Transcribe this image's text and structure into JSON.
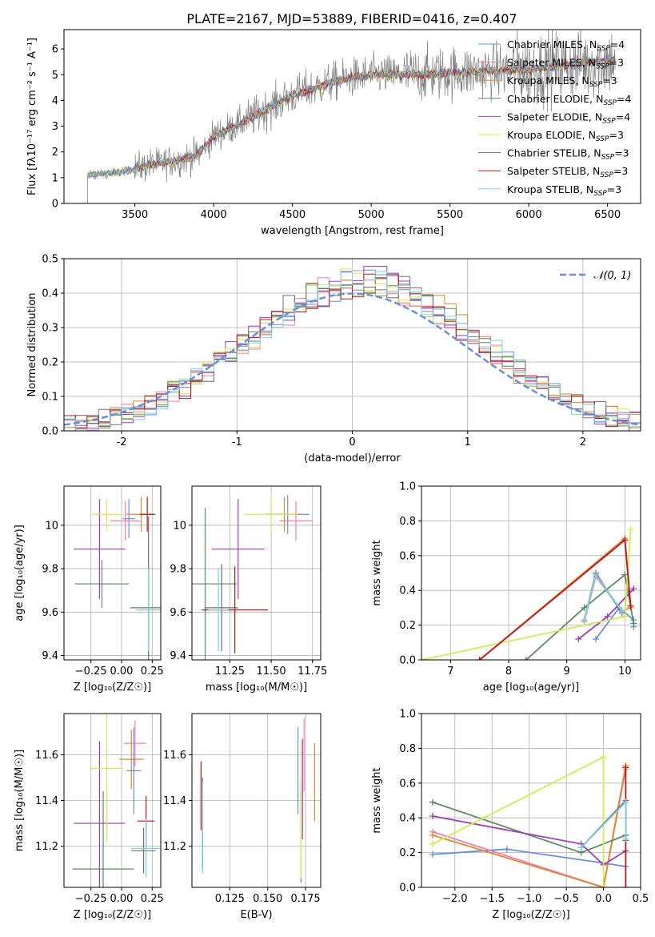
{
  "figure": {
    "title": "PLATE=2167, MJD=53889, FIBERID=0416, z=0.407"
  },
  "series_colors": {
    "Chabrier MILES": "#6a8fd8",
    "Salpeter MILES": "#ec7fb6",
    "Kroupa MILES": "#d98a30",
    "Chabrier ELODIE": "#5b8a63",
    "Salpeter ELODIE": "#9b3fb5",
    "Kroupa ELODIE": "#d4e857",
    "Chabrier STELIB": "#6e6e6e",
    "Salpeter STELIB": "#b5191c",
    "Kroupa STELIB": "#7ed0dd",
    "normal_curve": "#6a8fd8"
  },
  "chart_data": [
    {
      "id": "spectrum",
      "type": "line",
      "xlabel": "wavelength [Angstrom, rest frame]",
      "ylabel": "Flux [fλ10⁻¹⁷ erg cm⁻² s⁻¹ A⁻¹]",
      "xlim": [
        3050,
        6710
      ],
      "ylim": [
        0,
        6.75
      ],
      "xticks": [
        3500,
        4000,
        4500,
        5000,
        5500,
        6000,
        6500
      ],
      "yticks": [
        0,
        1,
        2,
        3,
        4,
        5,
        6
      ],
      "grid": false,
      "legend_position": "top-right",
      "legend": [
        {
          "label": "Chabrier MILES, N",
          "sub": "SSP",
          "suffix": "=4",
          "color_key": "Chabrier MILES"
        },
        {
          "label": "Salpeter MILES, N",
          "sub": "SSP",
          "suffix": "=3",
          "color_key": "Salpeter MILES"
        },
        {
          "label": "Kroupa MILES, N",
          "sub": "SSP",
          "suffix": "=3",
          "color_key": "Kroupa MILES"
        },
        {
          "label": "Chabrier ELODIE, N",
          "sub": "SSP",
          "suffix": "=4",
          "color_key": "Chabrier ELODIE"
        },
        {
          "label": "Salpeter ELODIE, N",
          "sub": "SSP",
          "suffix": "=4",
          "color_key": "Salpeter ELODIE"
        },
        {
          "label": "Kroupa ELODIE, N",
          "sub": "SSP",
          "suffix": "=3",
          "color_key": "Kroupa ELODIE"
        },
        {
          "label": "Chabrier STELIB, N",
          "sub": "SSP",
          "suffix": "=3",
          "color_key": "Chabrier STELIB"
        },
        {
          "label": "Salpeter STELIB, N",
          "sub": "SSP",
          "suffix": "=3",
          "color_key": "Salpeter STELIB"
        },
        {
          "label": "Kroupa STELIB, N",
          "sub": "SSP",
          "suffix": "=3",
          "color_key": "Kroupa STELIB"
        }
      ],
      "continuum_knots": [
        [
          3200,
          1.1
        ],
        [
          3400,
          1.2
        ],
        [
          3600,
          1.5
        ],
        [
          3800,
          1.7
        ],
        [
          3900,
          1.9
        ],
        [
          4000,
          2.6
        ],
        [
          4200,
          3.2
        ],
        [
          4500,
          4.2
        ],
        [
          4800,
          4.8
        ],
        [
          5000,
          5.0
        ],
        [
          5300,
          5.0
        ],
        [
          5600,
          5.1
        ],
        [
          6000,
          5.2
        ],
        [
          6300,
          5.4
        ],
        [
          6550,
          5.6
        ]
      ]
    },
    {
      "id": "residuals",
      "type": "histogram",
      "xlabel": "(data-model)/error",
      "ylabel": "Normed distribution",
      "xlim": [
        -2.5,
        2.5
      ],
      "ylim": [
        0,
        0.5
      ],
      "xticks": [
        -2,
        -1,
        0,
        1,
        2
      ],
      "yticks": [
        0.0,
        0.1,
        0.2,
        0.3,
        0.4,
        0.5
      ],
      "grid": true,
      "legend_position": "top-right",
      "legend_label": "𝒩(0, 1)",
      "bin_width": 0.1
    },
    {
      "id": "age-vs-Z",
      "type": "scatter",
      "xlabel": "Z [log₁₀(Z/Z☉)]",
      "ylabel": "age  [log₁₀(age/yr)]",
      "xlim": [
        -0.47,
        0.32
      ],
      "ylim": [
        9.38,
        10.18
      ],
      "xticks": [
        -0.25,
        0.0,
        0.25
      ],
      "xticklabels": [
        "−0.25",
        "0.00",
        "0.25"
      ],
      "yticks": [
        9.4,
        9.6,
        9.8,
        10.0
      ],
      "grid": true,
      "points": [
        {
          "color_key": "Chabrier MILES",
          "x": 0.06,
          "y": 10.03,
          "xerr": 0.05,
          "yerr": 0.09
        },
        {
          "color_key": "Salpeter MILES",
          "x": 0.03,
          "y": 10.02,
          "xerr": 0.12,
          "yerr": 0.09
        },
        {
          "color_key": "Kroupa MILES",
          "x": 0.16,
          "y": 10.05,
          "xerr": 0.12,
          "yerr": 0.08
        },
        {
          "color_key": "Chabrier ELODIE",
          "x": -0.16,
          "y": 9.73,
          "xerr": 0.22,
          "yerr": 0.11
        },
        {
          "color_key": "Salpeter ELODIE",
          "x": -0.18,
          "y": 9.89,
          "xerr": 0.21,
          "yerr": 0.23
        },
        {
          "color_key": "Kroupa ELODIE",
          "x": -0.12,
          "y": 10.05,
          "xerr": 0.13,
          "yerr": 0.07
        },
        {
          "color_key": "Chabrier STELIB",
          "x": 0.22,
          "y": 9.62,
          "xerr": 0.15,
          "yerr": 0.42
        },
        {
          "color_key": "Salpeter STELIB",
          "x": 0.21,
          "y": 10.05,
          "xerr": 0.06,
          "yerr": 0.08
        },
        {
          "color_key": "Kroupa STELIB",
          "x": 0.22,
          "y": 9.61,
          "xerr": 0.1,
          "yerr": 0.19
        }
      ]
    },
    {
      "id": "age-vs-mass",
      "type": "scatter",
      "xlabel": "mass [log₁₀(M/M☉)]",
      "ylabel": "",
      "xlim": [
        11.02,
        11.8
      ],
      "ylim": [
        9.38,
        10.18
      ],
      "xticks": [
        11.25,
        11.5,
        11.75
      ],
      "xticklabels": [
        "11.25",
        "11.50",
        "11.75"
      ],
      "yticks": [
        9.4,
        9.6,
        9.8,
        10.0
      ],
      "grid": true,
      "points": [
        {
          "color_key": "Chabrier MILES",
          "x": 11.6,
          "y": 10.05,
          "xerr": 0.13,
          "yerr": 0.09
        },
        {
          "color_key": "Salpeter MILES",
          "x": 11.65,
          "y": 10.02,
          "xerr": 0.1,
          "yerr": 0.09
        },
        {
          "color_key": "Kroupa MILES",
          "x": 11.58,
          "y": 10.05,
          "xerr": 0.1,
          "yerr": 0.08
        },
        {
          "color_key": "Chabrier ELODIE",
          "x": 11.1,
          "y": 9.73,
          "xerr": 0.19,
          "yerr": 0.35
        },
        {
          "color_key": "Salpeter ELODIE",
          "x": 11.3,
          "y": 9.89,
          "xerr": 0.16,
          "yerr": 0.23
        },
        {
          "color_key": "Kroupa ELODIE",
          "x": 11.5,
          "y": 10.05,
          "xerr": 0.16,
          "yerr": 0.09
        },
        {
          "color_key": "Chabrier STELIB",
          "x": 11.2,
          "y": 9.62,
          "xerr": 0.1,
          "yerr": 0.2
        },
        {
          "color_key": "Salpeter STELIB",
          "x": 11.28,
          "y": 9.61,
          "xerr": 0.2,
          "yerr": 0.2
        },
        {
          "color_key": "Kroupa STELIB",
          "x": 11.18,
          "y": 9.61,
          "xerr": 0.06,
          "yerr": 0.19
        }
      ]
    },
    {
      "id": "weight-vs-age",
      "type": "line",
      "xlabel": "age  [log₁₀(age/yr)]",
      "ylabel": "mass weight",
      "xlim": [
        6.5,
        10.27
      ],
      "ylim": [
        0,
        1
      ],
      "xticks": [
        7,
        8,
        9,
        10
      ],
      "yticks": [
        0.0,
        0.2,
        0.4,
        0.6,
        0.8,
        1.0
      ],
      "grid": true,
      "series": [
        {
          "color_key": "Chabrier MILES",
          "x": [
            9.5,
            9.9,
            10.15,
            10.15
          ],
          "y": [
            0.12,
            0.3,
            0.23,
            0.19
          ]
        },
        {
          "color_key": "Salpeter MILES",
          "x": [
            9.3,
            9.5,
            9.95,
            10.1
          ],
          "y": [
            0.22,
            0.48,
            0.28,
            0.3
          ]
        },
        {
          "color_key": "Kroupa MILES",
          "x": [
            7.5,
            10.0,
            10.1
          ],
          "y": [
            0.0,
            0.7,
            0.3
          ]
        },
        {
          "color_key": "Chabrier ELODIE",
          "x": [
            8.3,
            9.3,
            10.0,
            10.15
          ],
          "y": [
            0.0,
            0.3,
            0.49,
            0.21
          ]
        },
        {
          "color_key": "Salpeter ELODIE",
          "x": [
            9.2,
            9.7,
            10.15
          ],
          "y": [
            0.12,
            0.25,
            0.41
          ]
        },
        {
          "color_key": "Kroupa ELODIE",
          "x": [
            6.5,
            10.0,
            10.1
          ],
          "y": [
            0.0,
            0.25,
            0.75
          ]
        },
        {
          "color_key": "Chabrier STELIB",
          "x": [
            9.3,
            9.5,
            9.95
          ],
          "y": [
            0.23,
            0.5,
            0.27
          ]
        },
        {
          "color_key": "Salpeter STELIB",
          "x": [
            7.5,
            10.0,
            10.1
          ],
          "y": [
            0.0,
            0.69,
            0.31
          ]
        },
        {
          "color_key": "Kroupa STELIB",
          "x": [
            9.3,
            9.5,
            9.95
          ],
          "y": [
            0.23,
            0.49,
            0.28
          ]
        }
      ]
    },
    {
      "id": "mass-vs-Z",
      "type": "scatter",
      "xlabel": "Z [log₁₀(Z/Z☉)]",
      "ylabel": "mass [log₁₀(M/M☉)]",
      "xlim": [
        -0.47,
        0.32
      ],
      "ylim": [
        11.02,
        11.78
      ],
      "xticks": [
        -0.25,
        0.0,
        0.25
      ],
      "xticklabels": [
        "−0.25",
        "0.00",
        "0.25"
      ],
      "yticks": [
        11.2,
        11.4,
        11.6
      ],
      "grid": true,
      "points": [
        {
          "color_key": "Chabrier MILES",
          "x": 0.1,
          "y": 11.53,
          "xerr": 0.06,
          "yerr": 0.19
        },
        {
          "color_key": "Salpeter MILES",
          "x": 0.11,
          "y": 11.65,
          "xerr": 0.09,
          "yerr": 0.1
        },
        {
          "color_key": "Kroupa MILES",
          "x": 0.08,
          "y": 11.58,
          "xerr": 0.1,
          "yerr": 0.13
        },
        {
          "color_key": "Chabrier ELODIE",
          "x": -0.15,
          "y": 11.1,
          "xerr": 0.25,
          "yerr": 0.34
        },
        {
          "color_key": "Salpeter ELODIE",
          "x": -0.18,
          "y": 11.3,
          "xerr": 0.21,
          "yerr": 0.36
        },
        {
          "color_key": "Kroupa ELODIE",
          "x": -0.12,
          "y": 11.54,
          "xerr": 0.13,
          "yerr": 0.32
        },
        {
          "color_key": "Chabrier STELIB",
          "x": 0.18,
          "y": 11.18,
          "xerr": 0.1,
          "yerr": 0.1
        },
        {
          "color_key": "Salpeter STELIB",
          "x": 0.2,
          "y": 11.31,
          "xerr": 0.07,
          "yerr": 0.11
        },
        {
          "color_key": "Kroupa STELIB",
          "x": 0.2,
          "y": 11.19,
          "xerr": 0.12,
          "yerr": 0.13
        }
      ]
    },
    {
      "id": "mass-vs-EBV",
      "type": "scatter",
      "xlabel": "E(B-V)",
      "ylabel": "",
      "xlim": [
        0.1,
        0.185
      ],
      "ylim": [
        11.02,
        11.78
      ],
      "xticks": [
        0.125,
        0.15,
        0.175
      ],
      "xticklabels": [
        "0.125",
        "0.150",
        "0.175"
      ],
      "yticks": [
        11.2,
        11.4,
        11.6
      ],
      "grid": true,
      "points": [
        {
          "color_key": "Chabrier MILES",
          "x": 0.17,
          "y": 11.53,
          "xerr": 0,
          "yerr": 0.19
        },
        {
          "color_key": "Salpeter MILES",
          "x": 0.174,
          "y": 11.6,
          "xerr": 0,
          "yerr": 0.16
        },
        {
          "color_key": "Kroupa MILES",
          "x": 0.181,
          "y": 11.48,
          "xerr": 0,
          "yerr": 0.17
        },
        {
          "color_key": "Chabrier ELODIE",
          "x": 0.172,
          "y": 11.26,
          "xerr": 0,
          "yerr": 0.22
        },
        {
          "color_key": "Salpeter ELODIE",
          "x": 0.173,
          "y": 11.45,
          "xerr": 0,
          "yerr": 0.22
        },
        {
          "color_key": "Kroupa ELODIE",
          "x": 0.172,
          "y": 11.36,
          "xerr": 0,
          "yerr": 0.3
        },
        {
          "color_key": "Chabrier STELIB",
          "x": 0.107,
          "y": 11.3,
          "xerr": 0,
          "yerr": 0.2
        },
        {
          "color_key": "Salpeter STELIB",
          "x": 0.106,
          "y": 11.42,
          "xerr": 0,
          "yerr": 0.15
        },
        {
          "color_key": "Kroupa STELIB",
          "x": 0.107,
          "y": 11.28,
          "xerr": 0,
          "yerr": 0.2
        }
      ]
    },
    {
      "id": "weight-vs-Z",
      "type": "line",
      "xlabel": "Z [log₁₀(Z/Z☉)]",
      "ylabel": "mass weight",
      "xlim": [
        -2.45,
        0.5
      ],
      "ylim": [
        0,
        1
      ],
      "xticks": [
        -2.0,
        -1.5,
        -1.0,
        -0.5,
        0.0,
        0.5
      ],
      "xticklabels": [
        "−2.0",
        "−1.5",
        "−1.0",
        "−0.5",
        "0.0",
        "0.5"
      ],
      "yticks": [
        0.0,
        0.2,
        0.4,
        0.6,
        0.8,
        1.0
      ],
      "grid": true,
      "series": [
        {
          "color_key": "Chabrier MILES",
          "x": [
            -2.3,
            -1.3,
            0.0,
            0.3
          ],
          "y": [
            0.19,
            0.22,
            0.14,
            0.12
          ]
        },
        {
          "color_key": "Salpeter MILES",
          "x": [
            -2.3,
            0.0,
            0.3
          ],
          "y": [
            0.32,
            0.0,
            0.68
          ]
        },
        {
          "color_key": "Kroupa MILES",
          "x": [
            -2.3,
            0.0,
            0.3
          ],
          "y": [
            0.3,
            0.0,
            0.7
          ]
        },
        {
          "color_key": "Chabrier ELODIE",
          "x": [
            -2.3,
            -0.3,
            0.3
          ],
          "y": [
            0.49,
            0.2,
            0.3
          ]
        },
        {
          "color_key": "Salpeter ELODIE",
          "x": [
            -2.3,
            -0.3,
            0.0,
            0.3
          ],
          "y": [
            0.41,
            0.25,
            0.13,
            0.21
          ]
        },
        {
          "color_key": "Kroupa ELODIE",
          "x": [
            -2.3,
            0.0,
            0.0
          ],
          "y": [
            0.25,
            0.75,
            0.0
          ]
        },
        {
          "color_key": "Chabrier STELIB",
          "x": [
            -0.3,
            0.3,
            0.3
          ],
          "y": [
            0.23,
            0.5,
            0.27
          ]
        },
        {
          "color_key": "Salpeter STELIB",
          "x": [
            0.3,
            0.3
          ],
          "y": [
            0.0,
            0.69
          ]
        },
        {
          "color_key": "Kroupa STELIB",
          "x": [
            -0.3,
            0.3,
            0.3
          ],
          "y": [
            0.23,
            0.49,
            0.28
          ]
        }
      ]
    }
  ]
}
